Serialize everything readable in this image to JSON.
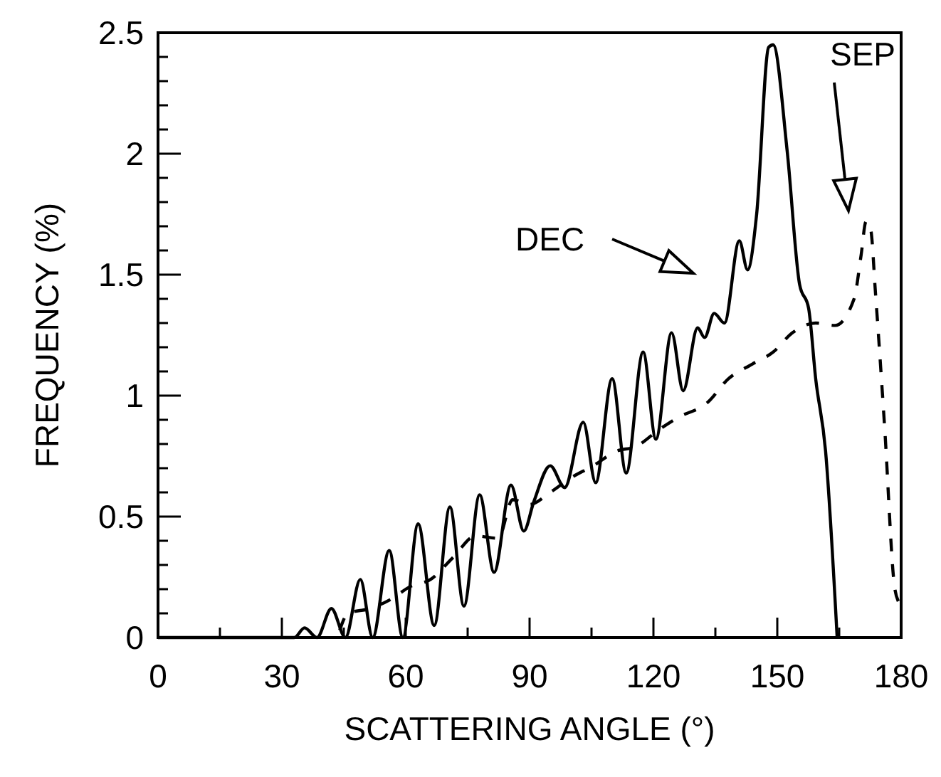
{
  "chart_data": {
    "type": "line",
    "xlabel": "SCATTERING ANGLE (°)",
    "ylabel": "FREQUENCY (%)",
    "xlim": [
      0,
      180
    ],
    "ylim": [
      0,
      2.5
    ],
    "xticks": [
      0,
      {
        "value": 15,
        "label": null
      },
      30,
      {
        "value": 45,
        "label": null
      },
      60,
      {
        "value": 75,
        "label": null
      },
      90,
      {
        "value": 105,
        "label": null
      },
      120,
      {
        "value": 135,
        "label": null
      },
      150,
      {
        "value": 165,
        "label": null
      },
      180
    ],
    "yticks": [
      0,
      {
        "value": 0.1,
        "label": null
      },
      {
        "value": 0.2,
        "label": null
      },
      {
        "value": 0.3,
        "label": null
      },
      {
        "value": 0.4,
        "label": null
      },
      0.5,
      {
        "value": 0.6,
        "label": null
      },
      {
        "value": 0.7,
        "label": null
      },
      {
        "value": 0.8,
        "label": null
      },
      {
        "value": 0.9,
        "label": null
      },
      1,
      {
        "value": 1.1,
        "label": null
      },
      {
        "value": 1.2,
        "label": null
      },
      {
        "value": 1.3,
        "label": null
      },
      {
        "value": 1.4,
        "label": null
      },
      1.5,
      {
        "value": 1.6,
        "label": null
      },
      {
        "value": 1.7,
        "label": null
      },
      {
        "value": 1.8,
        "label": null
      },
      {
        "value": 1.9,
        "label": null
      },
      2,
      {
        "value": 2.1,
        "label": null
      },
      {
        "value": 2.2,
        "label": null
      },
      {
        "value": 2.3,
        "label": null
      },
      {
        "value": 2.4,
        "label": null
      },
      2.5
    ],
    "grid": false,
    "marker": "none",
    "series": [
      {
        "color": "#000000",
        "line_style": "solid",
        "x": [
          0,
          33,
          35.5,
          38.5,
          42,
          45.4,
          49,
          52,
          56,
          59.3,
          63,
          66.9,
          70.7,
          74.1,
          77.9,
          81.4,
          85.5,
          88.6,
          91,
          95,
          98.5,
          103,
          106,
          110,
          113.4,
          117.5,
          120.6,
          124.4,
          127.2,
          130.7,
          132.4,
          134.7,
          137.2,
          140.8,
          142.8,
          145,
          147.9,
          149,
          152.4,
          155.4,
          157.6,
          159.3,
          161.7,
          164.5
        ],
        "values": [
          0,
          0,
          0.04,
          0,
          0.12,
          0,
          0.24,
          0,
          0.36,
          0,
          0.47,
          0.05,
          0.54,
          0.13,
          0.59,
          0.27,
          0.63,
          0.44,
          0.56,
          0.71,
          0.62,
          0.89,
          0.64,
          1.07,
          0.68,
          1.18,
          0.82,
          1.26,
          1.02,
          1.28,
          1.24,
          1.34,
          1.3,
          1.64,
          1.52,
          1.75,
          2.44,
          2.45,
          2.01,
          1.46,
          1.36,
          1.07,
          0.77,
          0
        ]
      },
      {
        "color": "#000000",
        "line_style": "dashed",
        "x": [
          44,
          46,
          51.4,
          56.6,
          61,
          66,
          71.4,
          77,
          82.4,
          85.9,
          90,
          95,
          100,
          105.4,
          111,
          115.8,
          121.4,
          126,
          133,
          138.2,
          143.9,
          149,
          153.7,
          159.3,
          164,
          168.6,
          170.3,
          171.5,
          172.6,
          173.8,
          176,
          178.4,
          179.3
        ],
        "values": [
          0.03,
          0.1,
          0.12,
          0.16,
          0.21,
          0.24,
          0.33,
          0.42,
          0.41,
          0.57,
          0.55,
          0.6,
          0.66,
          0.71,
          0.77,
          0.79,
          0.86,
          0.91,
          0.97,
          1.07,
          1.13,
          1.18,
          1.26,
          1.3,
          1.29,
          1.4,
          1.58,
          1.72,
          1.69,
          1.42,
          0.87,
          0.21,
          0.15
        ]
      }
    ],
    "annotations": [
      "DEC",
      "SEP"
    ]
  }
}
